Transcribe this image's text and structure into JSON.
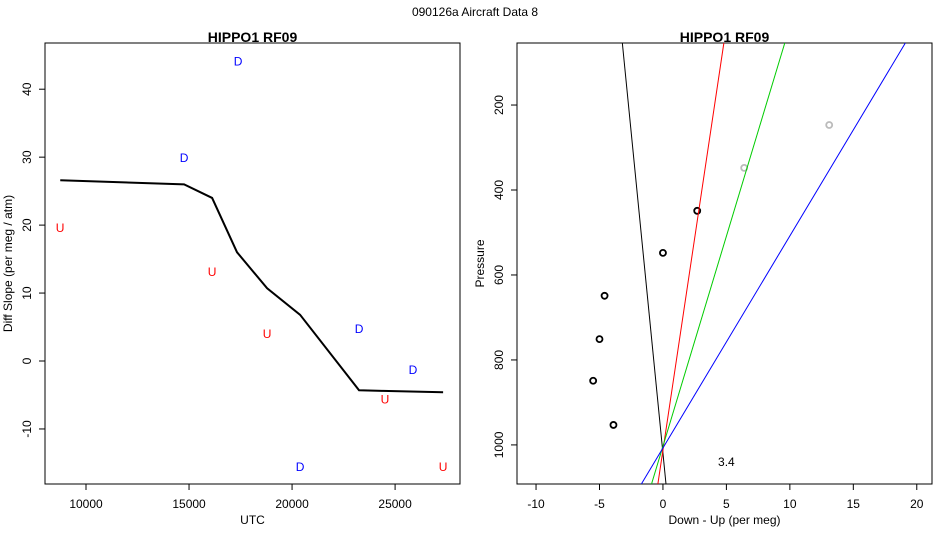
{
  "title": "090126a   Aircraft Data 8",
  "chart_data": [
    {
      "type": "line",
      "title": "HIPPO1 RF09",
      "x_label": "UTC",
      "y_label": "Diff Slope (per meg / atm)",
      "xlim": [
        8010,
        28150
      ],
      "ylim": [
        -18.1,
        46.8
      ],
      "xticks": [
        10000,
        15000,
        20000,
        25000
      ],
      "yticks": [
        -10,
        0,
        10,
        20,
        30,
        40
      ],
      "series": [
        {
          "mode": "line",
          "color": "#000000",
          "x": [
            8750,
            14760,
            16120,
            17330,
            18790,
            20390,
            23250,
            24420,
            27330
          ],
          "values": [
            26.6,
            26.0,
            24.0,
            16.0,
            10.7,
            6.8,
            -4.3,
            -4.4,
            -4.6
          ]
        },
        {
          "name": "U",
          "mode": "text",
          "color": "#ff0000",
          "x": [
            8740,
            16120,
            18790,
            24510,
            27330
          ],
          "values": [
            19.6,
            13.1,
            4.0,
            -5.7,
            -15.6
          ]
        },
        {
          "name": "D",
          "mode": "text",
          "color": "#0000ff",
          "x": [
            17380,
            14760,
            23250,
            25870,
            20390
          ],
          "values": [
            44.1,
            29.9,
            4.7,
            -1.3,
            -15.6
          ]
        }
      ]
    },
    {
      "type": "scatter",
      "title": "HIPPO1 RF09",
      "x_label": "Down - Up (per meg)",
      "y_label": "Pressure",
      "xlim": [
        -11.5,
        21.2
      ],
      "ylim": [
        1092,
        54
      ],
      "xticks": [
        -10,
        -5,
        0,
        5,
        10,
        15,
        20
      ],
      "yticks": [
        200,
        400,
        600,
        800,
        1000
      ],
      "series": [
        {
          "mode": "points",
          "color": "#000000",
          "x": [
            0,
            2.7,
            -4.6,
            -5.0,
            -5.5,
            -3.9
          ],
          "values": [
            548,
            449,
            649,
            751,
            849,
            953
          ]
        },
        {
          "mode": "points",
          "color": "#bbbbbb",
          "x": [
            6.4,
            13.1
          ],
          "values": [
            348,
            247
          ]
        },
        {
          "mode": "line",
          "color": "#000000",
          "x": [
            -3.2,
            0.24
          ],
          "values": [
            54,
            1092
          ]
        },
        {
          "mode": "line",
          "color": "#ff0000",
          "x": [
            4.8,
            -0.4
          ],
          "values": [
            54,
            1092
          ]
        },
        {
          "mode": "line",
          "color": "#00cc00",
          "x": [
            9.6,
            -0.9
          ],
          "values": [
            54,
            1092
          ]
        },
        {
          "mode": "line",
          "color": "#0000ff",
          "x": [
            19.1,
            -1.7
          ],
          "values": [
            54,
            1092
          ]
        }
      ],
      "annotations": [
        {
          "text": "3.4",
          "x": 5,
          "y": 1040
        }
      ]
    }
  ]
}
